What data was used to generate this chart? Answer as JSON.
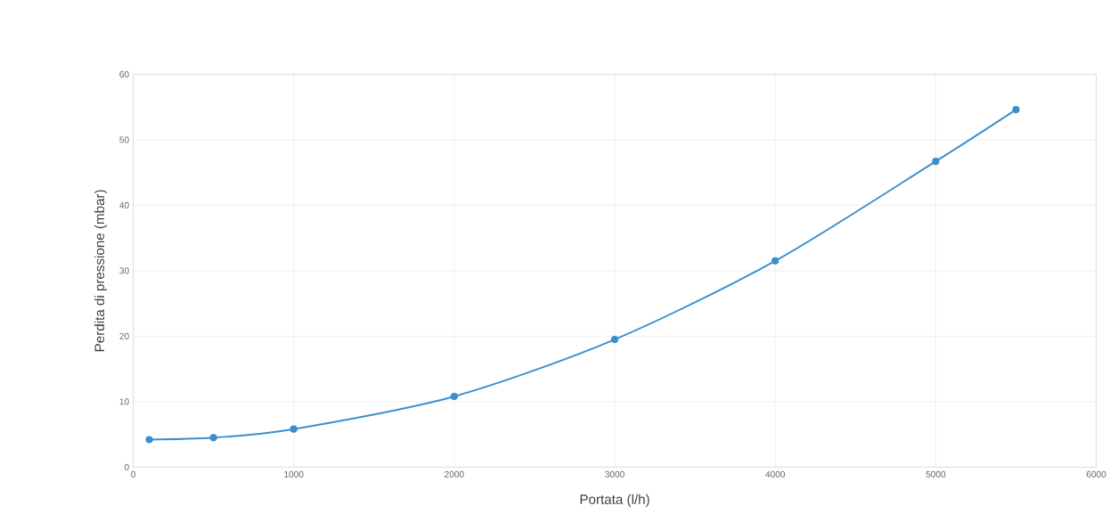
{
  "chart_data": {
    "type": "line",
    "xlabel": "Portata (l/h)",
    "ylabel": "Perdita di pressione (mbar)",
    "x": [
      100,
      500,
      1000,
      2000,
      3000,
      4000,
      5000,
      5500
    ],
    "series": [
      {
        "color": "#3a8fcd",
        "values": [
          4.2,
          4.5,
          5.8,
          10.8,
          19.5,
          31.5,
          46.7,
          54.6
        ]
      }
    ],
    "xlim": [
      0,
      6000
    ],
    "xticks": [
      0,
      1000,
      2000,
      3000,
      4000,
      5000,
      6000
    ],
    "ylim": [
      0,
      60
    ],
    "yticks": [
      0,
      10,
      20,
      30,
      40,
      50,
      60
    ],
    "grid": true,
    "marker": "circle",
    "line_style": "solid"
  }
}
